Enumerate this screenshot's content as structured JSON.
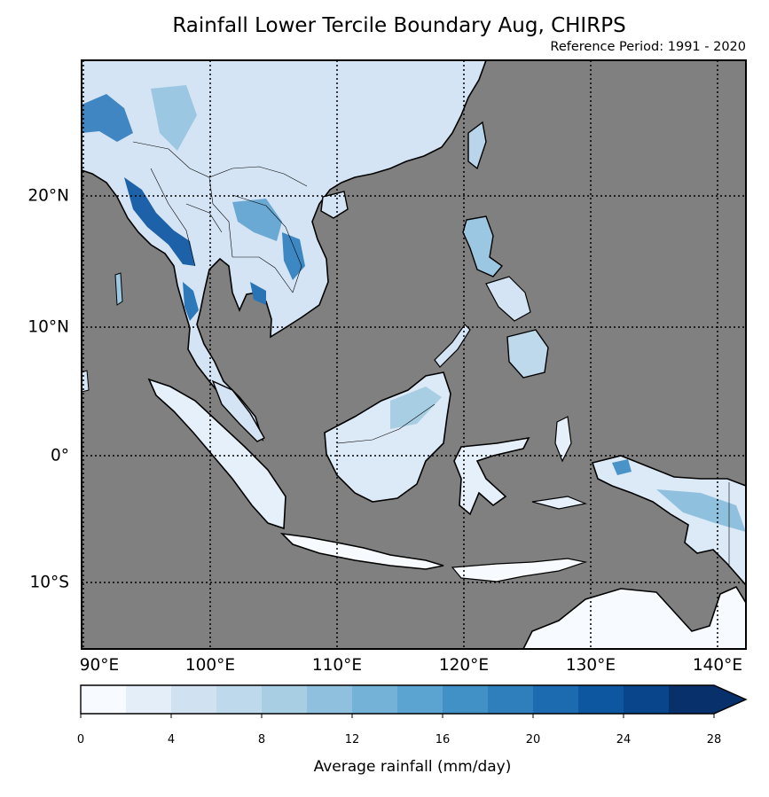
{
  "title": "Rainfall Lower Tercile Boundary Aug, CHIRPS",
  "subtitle": "Reference Period: 1991 - 2020",
  "map": {
    "background_color": "#808080",
    "lat_labels": [
      {
        "value": 20,
        "label": "20°N"
      },
      {
        "value": 10,
        "label": "10°N"
      },
      {
        "value": 0,
        "label": "0°"
      },
      {
        "value": -10,
        "label": "10°S"
      }
    ],
    "lon_labels": [
      {
        "value": 90,
        "label": "90°E"
      },
      {
        "value": 100,
        "label": "100°E"
      },
      {
        "value": 110,
        "label": "110°E"
      },
      {
        "value": 120,
        "label": "120°E"
      },
      {
        "value": 130,
        "label": "130°E"
      },
      {
        "value": 140,
        "label": "140°E"
      }
    ],
    "extent": {
      "lon_min": 90,
      "lon_max": 142,
      "lat_min": -15,
      "lat_max": 31
    }
  },
  "colorbar": {
    "label": "Average rainfall (mm/day)",
    "ticks": [
      "0",
      "4",
      "8",
      "12",
      "16",
      "20",
      "24",
      "28"
    ],
    "min": 0,
    "max": 28,
    "step": 2,
    "colors": [
      "#f7fbff",
      "#e3eef9",
      "#d0e1f2",
      "#bed8ec",
      "#a8cee4",
      "#8fc1de",
      "#74b2d8",
      "#5ba3d0",
      "#4191c6",
      "#2f7fbc",
      "#1c6ab0",
      "#0d57a1",
      "#08458a",
      "#08306b"
    ]
  }
}
